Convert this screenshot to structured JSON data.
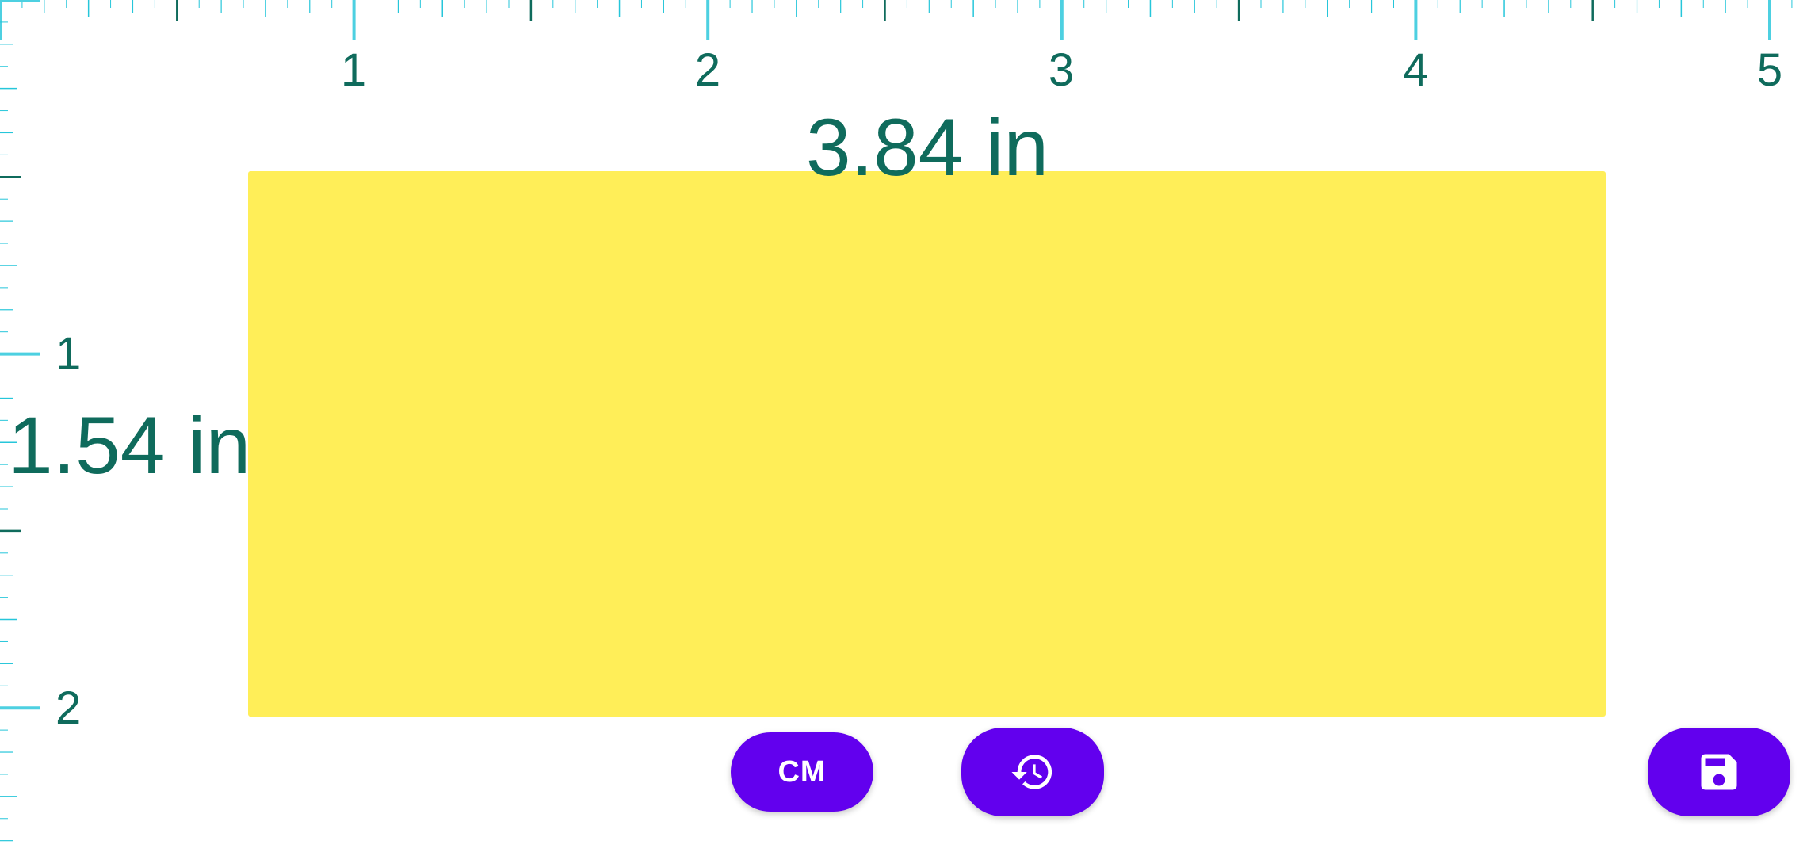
{
  "app": {
    "unit_symbol": "in"
  },
  "rulers": {
    "top_labels": [
      "1",
      "2",
      "3",
      "4",
      "5"
    ],
    "side_labels": [
      "1",
      "2"
    ]
  },
  "measurement": {
    "width_text": "3.84 in",
    "height_text": "1.54 in",
    "width_value": 3.84,
    "height_value": 1.54
  },
  "toolbar": {
    "unit_toggle_label": "CM",
    "history_icon": "history-icon",
    "save_icon": "save-icon"
  },
  "colors": {
    "rect_fill": "#ffee58",
    "ruler_tick": "#4dd0e1",
    "ruler_tick_minor": "#26c6da",
    "text": "#0f6b5c",
    "button": "#6200ee",
    "button_text": "#ffffff"
  }
}
